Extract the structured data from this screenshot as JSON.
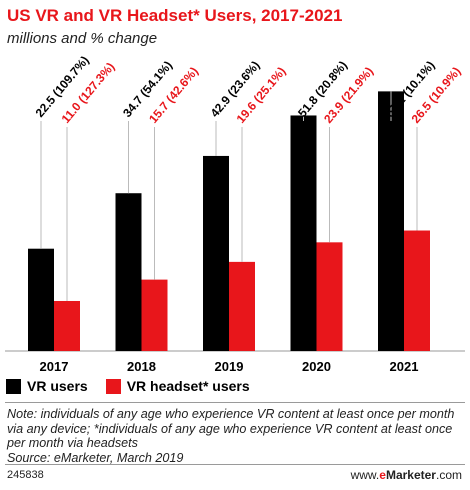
{
  "header": {
    "title": "US VR and VR Headset* Users, 2017-2021",
    "subtitle": "millions and % change"
  },
  "colors": {
    "vr": "#000000",
    "headset": "#e8161b",
    "title": "#e8161b"
  },
  "chart_data": {
    "type": "bar",
    "title": "US VR and VR Headset* Users, 2017-2021",
    "subtitle": "millions and % change",
    "categories": [
      "2017",
      "2018",
      "2019",
      "2020",
      "2021"
    ],
    "series": [
      {
        "name": "VR users",
        "color": "#000000",
        "values": [
          22.5,
          34.7,
          42.9,
          51.8,
          57.1
        ],
        "labels": [
          "22.5 (109.7%)",
          "34.7 (54.1%)",
          "42.9 (23.6%)",
          "51.8 (20.8%)",
          "57.1 (10.1%)"
        ]
      },
      {
        "name": "VR headset* users",
        "color": "#e8161b",
        "values": [
          11.0,
          15.7,
          19.6,
          23.9,
          26.5
        ],
        "labels": [
          "11.0 (127.3%)",
          "15.7 (42.6%)",
          "19.6 (25.1%)",
          "23.9 (21.9%)",
          "26.5 (10.9%)"
        ]
      }
    ],
    "xlabel": "",
    "ylabel": "",
    "ylim": [
      0,
      64
    ],
    "grid": false,
    "legend": "bottom-left"
  },
  "legend": {
    "vr": "VR users",
    "headset": "VR headset* users"
  },
  "note": "Note: individuals of any age who experience VR content at least once per month via any device; *individuals of any age who experience VR content at least once per month via headsets",
  "source": "Source: eMarketer, March 2019",
  "footer": {
    "id": "245838",
    "brand_prefix": "www.",
    "brand_e": "e",
    "brand_name": "Marketer",
    "brand_suffix": ".com"
  }
}
